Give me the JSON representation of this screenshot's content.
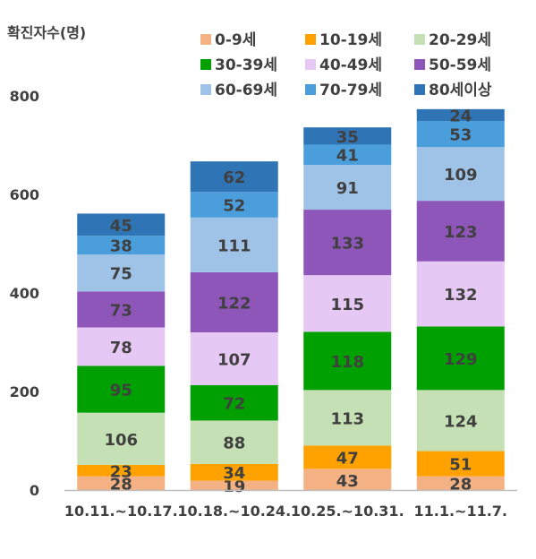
{
  "chart_data": {
    "type": "bar",
    "stacked": true,
    "ylabel": "확진자수(명)",
    "ylim": [
      0,
      800
    ],
    "yticks": [
      0,
      200,
      400,
      600,
      800
    ],
    "grid": false,
    "legend_position": "top",
    "categories": [
      "10.11.~10.17.",
      "10.18.~10.24.",
      "10.25.~10.31.",
      "11.1.~11.7."
    ],
    "series": [
      {
        "name": "0-9세",
        "color": "#f4b183",
        "values": [
          28,
          19,
          43,
          28
        ]
      },
      {
        "name": "10-19세",
        "color": "#ffa200",
        "values": [
          23,
          34,
          47,
          51
        ]
      },
      {
        "name": "20-29세",
        "color": "#c5e0b4",
        "values": [
          106,
          88,
          113,
          124
        ]
      },
      {
        "name": "30-39세",
        "color": "#00a000",
        "values": [
          95,
          72,
          118,
          129
        ]
      },
      {
        "name": "40-49세",
        "color": "#e6c8f5",
        "values": [
          78,
          107,
          115,
          132
        ]
      },
      {
        "name": "50-59세",
        "color": "#8e56b8",
        "values": [
          73,
          122,
          133,
          123
        ]
      },
      {
        "name": "60-69세",
        "color": "#9fc3e7",
        "values": [
          75,
          111,
          91,
          109
        ]
      },
      {
        "name": "70-79세",
        "color": "#4a9edc",
        "values": [
          38,
          52,
          41,
          53
        ]
      },
      {
        "name": "80세이상",
        "color": "#2f75b6",
        "values": [
          45,
          62,
          35,
          24
        ]
      }
    ]
  }
}
